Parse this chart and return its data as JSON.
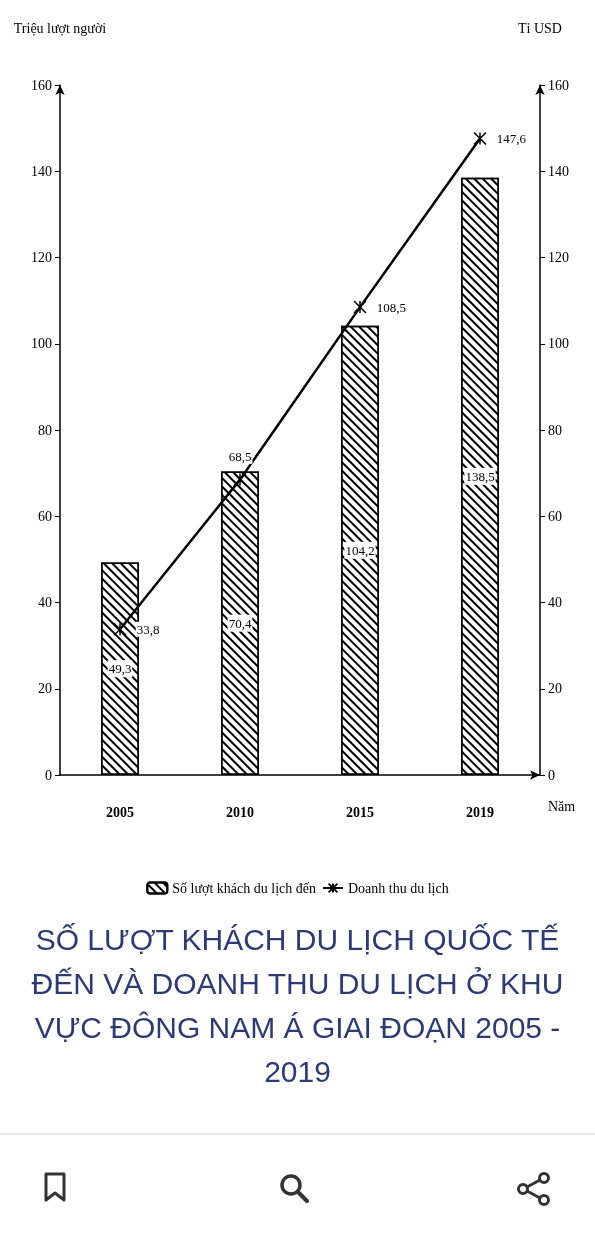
{
  "chart_data": {
    "type": "bar",
    "title": "SỐ LƯỢT KHÁCH DU LỊCH QUỐC TẾ ĐẾN VÀ DOANH THU DU LỊCH Ở KHU VỰC ĐÔNG NAM Á GIAI ĐOẠN 2005 - 2019",
    "categories": [
      "2005",
      "2010",
      "2015",
      "2019"
    ],
    "xlabel": "Năm",
    "ylabel": "Triệu lượt người",
    "y2label": "Tỉ USD",
    "ylim": [
      0,
      160
    ],
    "yticks": [
      0,
      20,
      40,
      60,
      80,
      100,
      120,
      140,
      160
    ],
    "y2lim": [
      0,
      160
    ],
    "y2ticks": [
      0,
      20,
      40,
      60,
      80,
      100,
      120,
      140,
      160
    ],
    "series": [
      {
        "name": "Số lượt khách du lịch đến",
        "color": "#000000",
        "values": [
          49.3,
          70.4,
          104.2,
          138.5
        ],
        "value_labels": [
          "49,3",
          "70,4",
          "104,2",
          "138,5"
        ]
      },
      {
        "name": "Doanh thu du lịch",
        "type": "line",
        "axis": "y2",
        "color": "#000000",
        "values": [
          33.8,
          68.5,
          108.5,
          147.6
        ],
        "value_labels": [
          "33,8",
          "68,5",
          "108,5",
          "147,6"
        ]
      }
    ],
    "marker": "cross",
    "legend": "bottom",
    "grid": false
  }
}
